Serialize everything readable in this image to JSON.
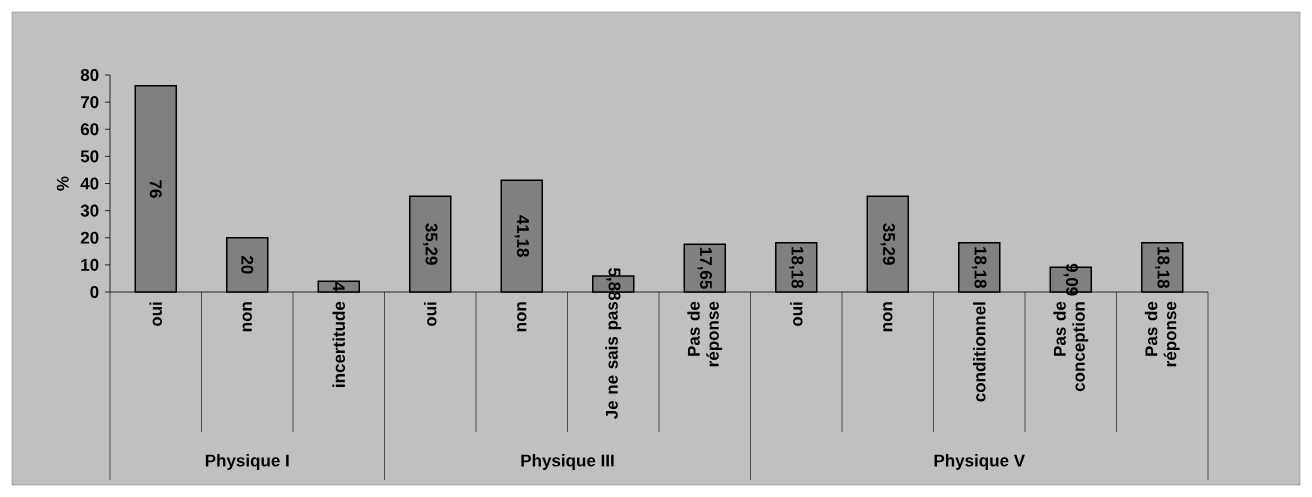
{
  "chart_data": {
    "type": "bar",
    "ylabel": "%",
    "categories": [
      "oui",
      "non",
      "incertitude",
      "oui",
      "non",
      "Je ne sais pas",
      "Pas de réponse",
      "oui",
      "non",
      "conditionnel",
      "Pas de conception",
      "Pas de réponse"
    ],
    "values": [
      76,
      20,
      4,
      35.29,
      41.18,
      5.88,
      17.65,
      18.18,
      35.29,
      18.18,
      9.09,
      18.18
    ],
    "value_labels": [
      "76",
      "20",
      "4",
      "35,29",
      "41,18",
      "5,88",
      "17,65",
      "18,18",
      "35,29",
      "18,18",
      "9,09",
      "18,18"
    ],
    "color": "#808080",
    "ylim": [
      0,
      80
    ],
    "yticks": [
      0,
      10,
      20,
      30,
      40,
      50,
      60,
      70,
      80
    ],
    "annotations": [
      "Physique I",
      "Physique III",
      "Physique V"
    ]
  }
}
